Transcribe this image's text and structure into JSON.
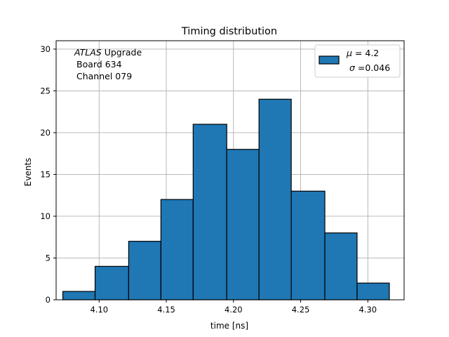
{
  "chart_data": {
    "type": "bar",
    "title": "Timing distribution",
    "xlabel": "time [ns]",
    "ylabel": "Events",
    "xlim": [
      4.068,
      4.327
    ],
    "ylim": [
      0,
      31
    ],
    "grid": true,
    "bin_edges": [
      4.073,
      4.097,
      4.122,
      4.146,
      4.17,
      4.195,
      4.219,
      4.243,
      4.268,
      4.292,
      4.316
    ],
    "values": [
      1,
      4,
      7,
      12,
      21,
      18,
      24,
      13,
      8,
      2
    ],
    "xticks": [
      4.1,
      4.15,
      4.2,
      4.25,
      4.3
    ],
    "xtick_labels": [
      "4.10",
      "4.15",
      "4.20",
      "4.25",
      "4.30"
    ],
    "yticks": [
      0,
      5,
      10,
      15,
      20,
      25,
      30
    ],
    "ytick_labels": [
      "0",
      "5",
      "10",
      "15",
      "20",
      "25",
      "30"
    ],
    "annotation": {
      "experiment_italic": "ATLAS",
      "experiment_suffix": " Upgrade",
      "board": "Board 634",
      "channel": "Channel 079"
    },
    "legend": {
      "placement": "top-right",
      "line1_symbol": "μ",
      "line1_value": " = 4.2",
      "line2_symbol": "σ",
      "line2_value": " =0.046"
    },
    "colors": {
      "bar": "#1f77b4",
      "edge": "#000000"
    }
  }
}
